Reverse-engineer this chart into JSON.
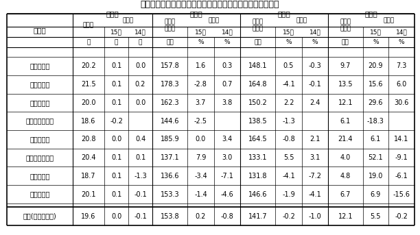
{
  "title": "表１２　１人平均月間出勤日数及び労働時間（３０人以上）",
  "row_labels": [
    "調査産業計",
    "建　設　業",
    "製　造　業",
    "電気ガス水道業",
    "運輸通信業",
    "卸小売業飲食店",
    "金融保険業",
    "サービス業"
  ],
  "footer_label": "全国(調査産業計)",
  "data": [
    [
      20.2,
      0.1,
      0.0,
      157.8,
      1.6,
      0.3,
      148.1,
      0.5,
      -0.3,
      9.7,
      20.9,
      7.3
    ],
    [
      21.5,
      0.1,
      0.2,
      178.3,
      -2.8,
      0.7,
      164.8,
      -4.1,
      -0.1,
      13.5,
      15.6,
      6.0
    ],
    [
      20.0,
      0.1,
      0.0,
      162.3,
      3.7,
      3.8,
      150.2,
      2.2,
      2.4,
      12.1,
      29.6,
      30.6
    ],
    [
      18.6,
      -0.2,
      "",
      144.6,
      -2.5,
      "",
      138.5,
      -1.3,
      "",
      6.1,
      -18.3,
      ""
    ],
    [
      20.8,
      0.0,
      0.4,
      185.9,
      0.0,
      3.4,
      164.5,
      -0.8,
      2.1,
      21.4,
      6.1,
      14.1
    ],
    [
      20.4,
      0.1,
      0.1,
      137.1,
      7.9,
      3.0,
      133.1,
      5.5,
      3.1,
      4.0,
      52.1,
      -9.1
    ],
    [
      18.7,
      0.1,
      -1.3,
      136.6,
      -3.4,
      -7.1,
      131.8,
      -4.1,
      -7.2,
      4.8,
      19.0,
      -6.1
    ],
    [
      20.1,
      0.1,
      -0.1,
      153.3,
      -1.4,
      -4.6,
      146.6,
      -1.9,
      -4.1,
      6.7,
      6.9,
      -15.6
    ]
  ],
  "footer_data": [
    19.6,
    0.0,
    -0.1,
    153.8,
    0.2,
    -0.8,
    141.7,
    -0.2,
    -1.0,
    12.1,
    5.5,
    -0.2
  ],
  "bg_color": "#ffffff",
  "text_color": "#000000"
}
